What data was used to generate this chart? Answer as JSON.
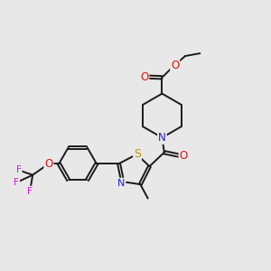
{
  "bg_color": "#e8e8e8",
  "bond_color": "#1a1a1a",
  "atom_colors": {
    "N": "#2020dd",
    "O": "#dd1111",
    "S": "#b8960a",
    "F": "#dd11dd",
    "C": "#1a1a1a"
  },
  "font_size": 7.5,
  "bond_width": 1.4,
  "fig_size": [
    3.0,
    3.0
  ],
  "dpi": 100,
  "xlim": [
    0,
    10
  ],
  "ylim": [
    0,
    10
  ]
}
